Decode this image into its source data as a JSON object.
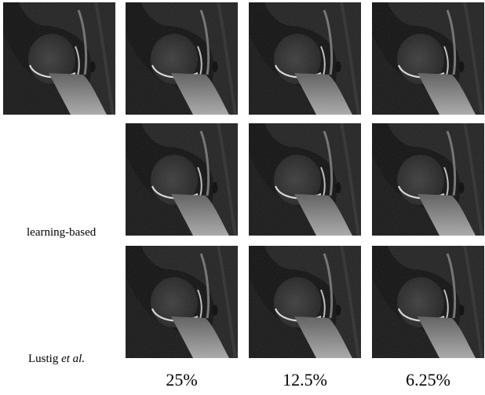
{
  "figure": {
    "row_labels": [
      {
        "text": "learning-based",
        "italic_suffix": ""
      },
      {
        "text": "Lustig ",
        "italic_suffix": "et al."
      }
    ],
    "column_labels": [
      "25%",
      "12.5%",
      "6.25%"
    ],
    "images": [
      {
        "id": "ground-truth",
        "label": ""
      },
      {
        "id": "learning-based-25",
        "label": ""
      },
      {
        "id": "learning-based-12.5",
        "label": ""
      },
      {
        "id": "learning-based-6.25",
        "label": ""
      },
      {
        "id": "lustig-25",
        "label": ""
      },
      {
        "id": "lustig-12.5",
        "label": ""
      },
      {
        "id": "lustig-6.25",
        "label": ""
      },
      {
        "id": "top-25",
        "label": ""
      },
      {
        "id": "top-12.5",
        "label": ""
      },
      {
        "id": "top-6.25",
        "label": ""
      }
    ]
  }
}
